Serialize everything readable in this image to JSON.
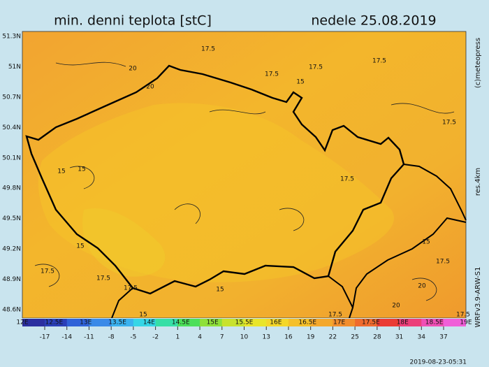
{
  "title": "min. denni teplota [stC]",
  "date": "nedele 25.08.2019",
  "lat_labels": [
    "51.3N",
    "51N",
    "50.7N",
    "50.4N",
    "50.1N",
    "49.8N",
    "49.5N",
    "49.2N",
    "48.9N",
    "48.6N"
  ],
  "lon_labels": [
    "12E",
    "12.5E",
    "13E",
    "13.5E",
    "14E",
    "14.5E",
    "15E",
    "15.5E",
    "16E",
    "16.5E",
    "17E",
    "17.5E",
    "18E",
    "18.5E",
    "19E"
  ],
  "colorbar": [
    -17,
    -14,
    -11,
    -8,
    -5,
    -2,
    1,
    4,
    7,
    10,
    13,
    16,
    19,
    22,
    25,
    28,
    31,
    34,
    37
  ],
  "contour_labels": [
    "17.5",
    "20",
    "20",
    "17.5",
    "17.5",
    "17.5",
    "15",
    "17.5",
    "15",
    "15",
    "17.5",
    "15",
    "17.5",
    "17.5",
    "17.5",
    "15",
    "17.5",
    "15",
    "20",
    "20",
    "17.5",
    "15",
    "17.5"
  ],
  "credit": "(c)meteopress",
  "resolution": "res.4km",
  "model": "WRFv3.9-ARW-S1",
  "timestamp": "2019-08-23-05:31"
}
